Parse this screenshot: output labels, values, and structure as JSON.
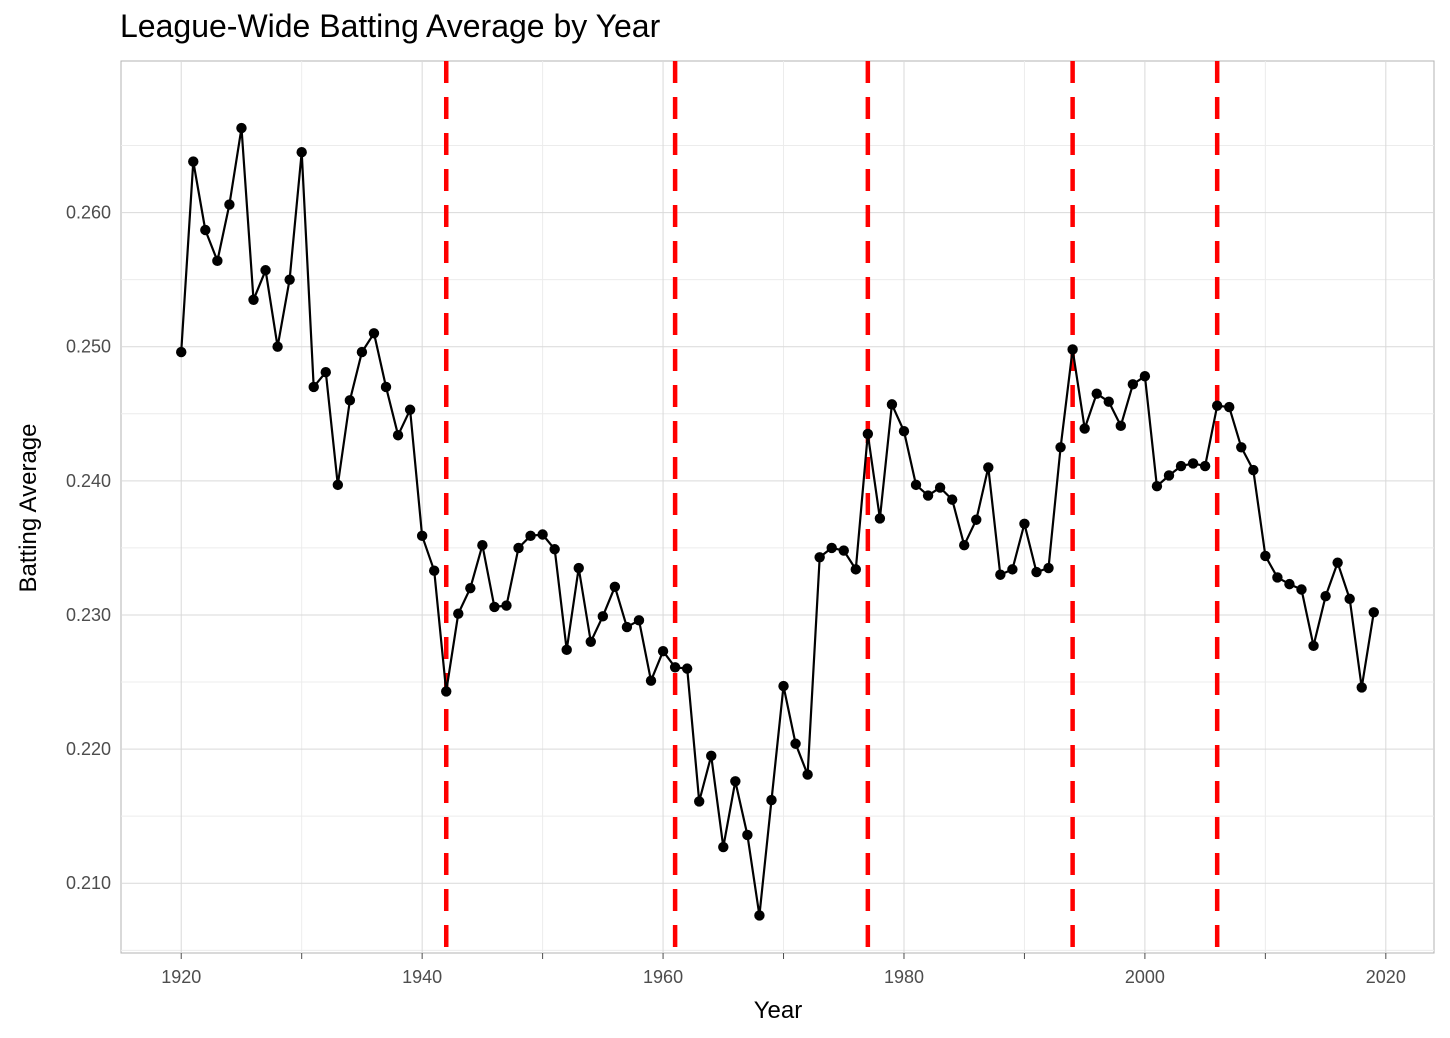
{
  "chart_data": {
    "type": "line",
    "title": "League-Wide Batting Average by Year",
    "xlabel": "Year",
    "ylabel": "Batting Average",
    "xlim": [
      1915,
      2024
    ],
    "ylim": [
      0.2048,
      0.2713
    ],
    "x_ticks": [
      1920,
      1940,
      1960,
      1980,
      2000,
      2020
    ],
    "y_ticks": [
      0.21,
      0.22,
      0.23,
      0.24,
      0.25,
      0.26
    ],
    "y_tick_labels": [
      "0.210",
      "0.220",
      "0.230",
      "0.240",
      "0.250",
      "0.260"
    ],
    "grid": true,
    "line_color": "#000000",
    "point_color": "#000000",
    "vline_color": "#ff0000",
    "vlines": [
      1942,
      1961,
      1977,
      1994,
      2006
    ],
    "series": [
      {
        "x": [
          1920,
          1921,
          1922,
          1923,
          1924,
          1925,
          1926,
          1927,
          1928,
          1929,
          1930,
          1931,
          1932,
          1933,
          1934,
          1935,
          1936,
          1937,
          1938,
          1939,
          1940,
          1941,
          1942,
          1943,
          1944,
          1945,
          1946,
          1947,
          1948,
          1949,
          1950,
          1951,
          1952,
          1953,
          1954,
          1955,
          1956,
          1957,
          1958,
          1959,
          1960,
          1961,
          1962,
          1963,
          1964,
          1965,
          1966,
          1967,
          1968,
          1969,
          1970,
          1971,
          1972,
          1973,
          1974,
          1975,
          1976,
          1977,
          1978,
          1979,
          1980,
          1981,
          1982,
          1983,
          1984,
          1985,
          1986,
          1987,
          1988,
          1989,
          1990,
          1991,
          1992,
          1993,
          1994,
          1995,
          1996,
          1997,
          1998,
          1999,
          2000,
          2001,
          2002,
          2003,
          2004,
          2005,
          2006,
          2007,
          2008,
          2009,
          2010,
          2011,
          2012,
          2013,
          2014,
          2015,
          2016,
          2017,
          2018,
          2019
        ],
        "values": [
          0.2496,
          0.2638,
          0.2587,
          0.2564,
          0.2606,
          0.2663,
          0.2535,
          0.2557,
          0.25,
          0.255,
          0.2645,
          0.247,
          0.2481,
          0.2397,
          0.246,
          0.2496,
          0.251,
          0.247,
          0.2434,
          0.2453,
          0.2359,
          0.2333,
          0.2243,
          0.2301,
          0.232,
          0.2352,
          0.2306,
          0.2307,
          0.235,
          0.2359,
          0.236,
          0.2349,
          0.2274,
          0.2335,
          0.228,
          0.2299,
          0.2321,
          0.2291,
          0.2296,
          0.2251,
          0.2273,
          0.2261,
          0.226,
          0.2161,
          0.2195,
          0.2127,
          0.2176,
          0.2136,
          0.2076,
          0.2162,
          0.2247,
          0.2204,
          0.2181,
          0.2343,
          0.235,
          0.2348,
          0.2334,
          0.2435,
          0.2372,
          0.2457,
          0.2437,
          0.2397,
          0.2389,
          0.2395,
          0.2386,
          0.2352,
          0.2371,
          0.241,
          0.233,
          0.2334,
          0.2368,
          0.2332,
          0.2335,
          0.2425,
          0.2498,
          0.2439,
          0.2465,
          0.2459,
          0.2441,
          0.2472,
          0.2478,
          0.2396,
          0.2404,
          0.2411,
          0.2413,
          0.2411,
          0.2456,
          0.2455,
          0.2425,
          0.2408,
          0.2344,
          0.2328,
          0.2323,
          0.2319,
          0.2277,
          0.2314,
          0.2339,
          0.2312,
          0.2246,
          0.2302
        ]
      }
    ]
  }
}
